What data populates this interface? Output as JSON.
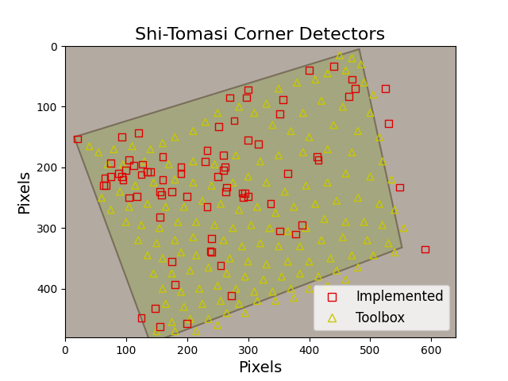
{
  "chart_data": {
    "type": "scatter",
    "title": "Shi-Tomasi Corner Detectors",
    "x_label": "Pixels",
    "y_label": "Pixels",
    "xlim": [
      0,
      640
    ],
    "ylim": [
      480,
      0
    ],
    "xticks": [
      0,
      100,
      200,
      300,
      400,
      500,
      600
    ],
    "yticks": [
      0,
      100,
      200,
      300,
      400
    ],
    "legend": "lower right",
    "series": [
      {
        "name": "Implemented",
        "color": "#e00000",
        "marker": "square",
        "x": [
          20,
          440,
          400,
          470,
          475,
          465,
          525,
          530,
          300,
          297,
          270,
          357,
          352,
          277,
          252,
          317,
          300,
          120,
          93,
          233,
          260,
          160,
          230,
          262,
          260,
          190,
          190,
          127,
          113,
          75,
          105,
          65,
          100,
          88,
          93,
          95,
          75,
          63,
          67,
          125,
          135,
          140,
          160,
          365,
          413,
          415,
          250,
          265,
          263,
          200,
          175,
          155,
          158,
          118,
          105,
          295,
          292,
          300,
          290,
          337,
          548,
          233,
          155,
          352,
          388,
          378,
          240,
          238,
          240,
          255,
          175,
          180,
          273,
          148,
          125,
          155,
          200,
          590
        ],
        "y": [
          153,
          33,
          40,
          55,
          70,
          83,
          70,
          128,
          72,
          85,
          85,
          88,
          112,
          123,
          133,
          162,
          155,
          143,
          150,
          172,
          180,
          183,
          190,
          200,
          205,
          200,
          210,
          195,
          197,
          193,
          188,
          218,
          205,
          210,
          215,
          220,
          215,
          230,
          230,
          212,
          207,
          207,
          220,
          210,
          183,
          188,
          215,
          233,
          240,
          248,
          240,
          240,
          245,
          248,
          250,
          243,
          250,
          248,
          242,
          260,
          233,
          265,
          282,
          305,
          295,
          310,
          317,
          338,
          340,
          362,
          355,
          393,
          412,
          432,
          448,
          463,
          457,
          335
        ]
      },
      {
        "name": "Toolbox",
        "color": "#c8c800",
        "marker": "triangle",
        "x": [
          450,
          470,
          485,
          460,
          430,
          410,
          490,
          505,
          455,
          420,
          380,
          350,
          330,
          390,
          500,
          515,
          480,
          440,
          400,
          370,
          340,
          310,
          285,
          250,
          230,
          210,
          180,
          160,
          140,
          110,
          80,
          55,
          40,
          70,
          95,
          130,
          170,
          210,
          245,
          280,
          320,
          350,
          390,
          430,
          470,
          520,
          535,
          500,
          460,
          430,
          395,
          360,
          330,
          300,
          275,
          240,
          210,
          180,
          145,
          115,
          90,
          60,
          75,
          105,
          135,
          165,
          195,
          225,
          255,
          285,
          315,
          345,
          375,
          410,
          445,
          480,
          515,
          540,
          555,
          520,
          490,
          460,
          425,
          395,
          365,
          335,
          305,
          275,
          245,
          215,
          185,
          155,
          125,
          100,
          120,
          150,
          180,
          210,
          260,
          290,
          320,
          350,
          385,
          420,
          455,
          495,
          530,
          540,
          505,
          470,
          435,
          400,
          365,
          330,
          300,
          270,
          215,
          190,
          160,
          135,
          145,
          175,
          205,
          235,
          265,
          295,
          325,
          355,
          385,
          415,
          445,
          480,
          460,
          430,
          400,
          370,
          340,
          310,
          280,
          250,
          220,
          190,
          160,
          165,
          195,
          225,
          255,
          285,
          315,
          345,
          375,
          235,
          205,
          175,
          265,
          295,
          180,
          215,
          150,
          250
        ],
        "y": [
          15,
          20,
          30,
          40,
          45,
          55,
          60,
          80,
          100,
          90,
          60,
          70,
          95,
          110,
          110,
          150,
          140,
          130,
          150,
          140,
          130,
          110,
          100,
          110,
          125,
          140,
          150,
          160,
          170,
          165,
          170,
          175,
          165,
          195,
          195,
          190,
          195,
          190,
          195,
          180,
          190,
          180,
          175,
          170,
          175,
          190,
          220,
          215,
          210,
          225,
          230,
          240,
          225,
          215,
          225,
          230,
          225,
          220,
          225,
          230,
          240,
          250,
          270,
          265,
          260,
          265,
          265,
          255,
          260,
          270,
          265,
          275,
          265,
          260,
          255,
          250,
          260,
          270,
          300,
          295,
          290,
          290,
          285,
          300,
          305,
          300,
          295,
          300,
          295,
          290,
          290,
          300,
          295,
          290,
          320,
          325,
          320,
          315,
          320,
          330,
          325,
          330,
          330,
          320,
          315,
          320,
          325,
          340,
          345,
          345,
          350,
          355,
          355,
          360,
          355,
          350,
          345,
          340,
          350,
          345,
          375,
          375,
          370,
          365,
          375,
          380,
          385,
          380,
          375,
          380,
          370,
          365,
          385,
          395,
          400,
          400,
          405,
          405,
          400,
          395,
          400,
          405,
          400,
          425,
          430,
          425,
          420,
          425,
          420,
          420,
          415,
          450,
          450,
          455,
          440,
          440,
          470,
          470,
          470,
          460
        ]
      }
    ]
  }
}
